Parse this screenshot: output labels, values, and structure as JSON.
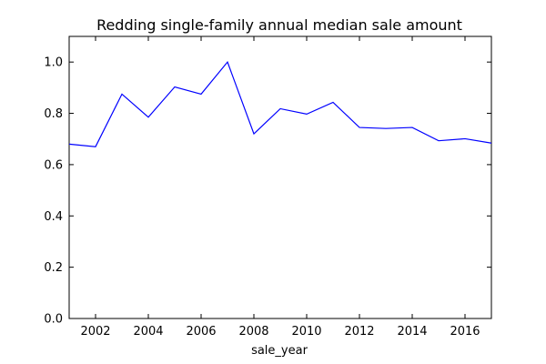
{
  "chart_data": {
    "type": "line",
    "title": "Redding single-family annual median sale amount",
    "xlabel": "sale_year",
    "ylabel": "",
    "xlim": [
      2001,
      2017
    ],
    "ylim": [
      0.0,
      1.1
    ],
    "xticks": [
      2002,
      2004,
      2006,
      2008,
      2010,
      2012,
      2014,
      2016
    ],
    "yticks": [
      0.0,
      0.2,
      0.4,
      0.6,
      0.8,
      1.0
    ],
    "ytick_labels": [
      "0.0",
      "0.2",
      "0.4",
      "0.6",
      "0.8",
      "1.0"
    ],
    "grid": false,
    "legend": "none",
    "series": [
      {
        "color": "#0000ff",
        "x": [
          2001,
          2002,
          2003,
          2004,
          2005,
          2006,
          2007,
          2008,
          2009,
          2010,
          2011,
          2012,
          2013,
          2014,
          2015,
          2016,
          2017
        ],
        "y": [
          0.68,
          0.67,
          0.875,
          0.785,
          0.903,
          0.875,
          1.0,
          0.72,
          0.818,
          0.797,
          0.843,
          0.745,
          0.741,
          0.745,
          0.693,
          0.701,
          0.684
        ]
      }
    ]
  }
}
